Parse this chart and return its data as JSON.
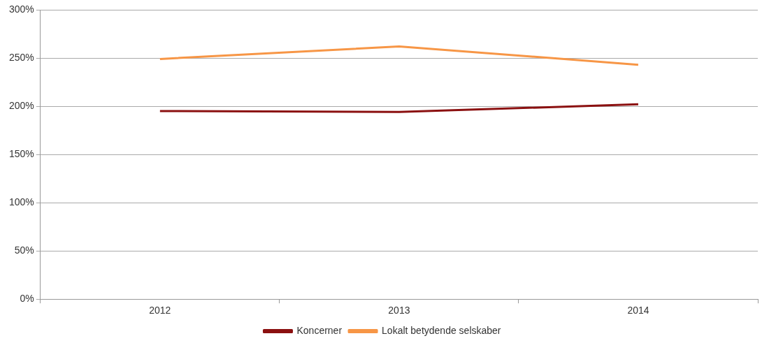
{
  "chart_data": {
    "type": "line",
    "categories": [
      "2012",
      "2013",
      "2014"
    ],
    "series": [
      {
        "name": "Koncerner",
        "color": "#8b1010",
        "values": [
          195,
          194,
          202
        ]
      },
      {
        "name": "Lokalt betydende selskaber",
        "color": "#f79646",
        "values": [
          249,
          262,
          243
        ]
      }
    ],
    "ylim": [
      0,
      300
    ],
    "yticks": [
      {
        "value": 0,
        "label": "0%"
      },
      {
        "value": 50,
        "label": "50%"
      },
      {
        "value": 100,
        "label": "100%"
      },
      {
        "value": 150,
        "label": "150%"
      },
      {
        "value": 200,
        "label": "200%"
      },
      {
        "value": 250,
        "label": "250%"
      },
      {
        "value": 300,
        "label": "300%"
      }
    ],
    "grid": "y",
    "legend": "bottom",
    "marker": "none",
    "line_style": "solid"
  }
}
